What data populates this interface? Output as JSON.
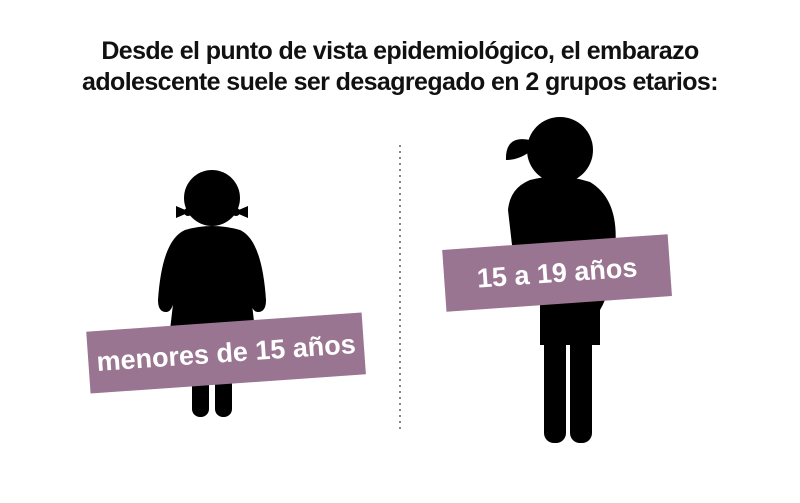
{
  "title_lines": [
    "Desde el punto de vista epidemiológico, el embarazo",
    "adolescente suele ser desagregado en 2 grupos etarios:"
  ],
  "groups": [
    {
      "label": "menores de 15 años"
    },
    {
      "label": "15 a 19 años"
    }
  ]
}
